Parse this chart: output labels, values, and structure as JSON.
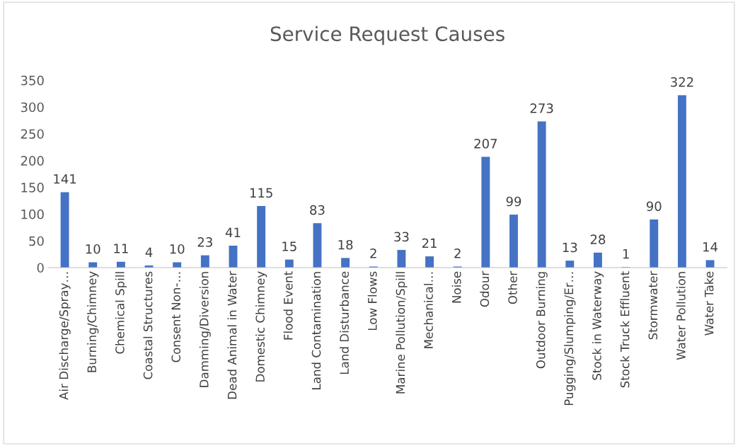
{
  "chart_data": {
    "type": "bar",
    "title": "Service Request Causes",
    "categories": [
      "Air Discharge/Spray…",
      "Burning/Chimney",
      "Chemical Spill",
      "Coastal Structures",
      "Consent Non-…",
      "Damming/Diversion",
      "Dead Animal in Water",
      "Domestic Chimney",
      "Flood Event",
      "Land Contamination",
      "Land Disturbance",
      "Low Flows",
      "Marine Pollution/Spill",
      "Mechanical…",
      "Noise",
      "Odour",
      "Other",
      "Outdoor Burning",
      "Pugging/Slumping/Er…",
      "Stock in Waterway",
      "Stock Truck Effluent",
      "Stormwater",
      "Water Pollution",
      "Water Take"
    ],
    "values": [
      141,
      10,
      11,
      4,
      10,
      23,
      41,
      115,
      15,
      83,
      18,
      2,
      33,
      21,
      2,
      207,
      99,
      273,
      13,
      28,
      1,
      90,
      322,
      14
    ],
    "color": "#4472c4",
    "ylim": [
      0,
      350
    ],
    "yticks": [
      0,
      50,
      100,
      150,
      200,
      250,
      300,
      350
    ],
    "grid": false,
    "data_labels": true
  }
}
